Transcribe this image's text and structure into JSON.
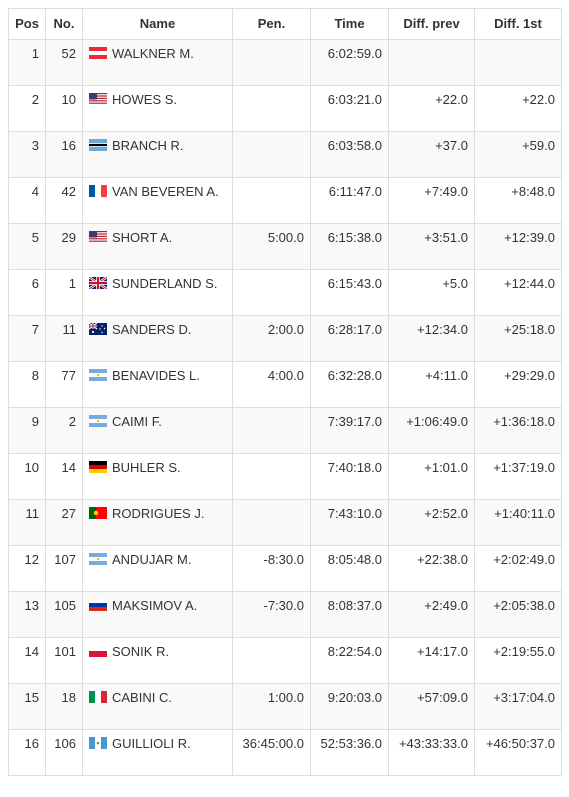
{
  "table": {
    "header": [
      "Pos",
      "No.",
      "Name",
      "Pen.",
      "Time",
      "Diff. prev",
      "Diff. 1st"
    ],
    "rows": [
      [
        1,
        52,
        "WALKNER M.",
        null,
        "6:02:59.0",
        null,
        null
      ],
      [
        2,
        10,
        "HOWES S.",
        null,
        "6:03:21.0",
        "+22.0",
        "+22.0"
      ],
      [
        3,
        16,
        "BRANCH R.",
        null,
        "6:03:58.0",
        "+37.0",
        "+59.0"
      ],
      [
        4,
        42,
        "VAN BEVEREN A.",
        null,
        "6:11:47.0",
        "+7:49.0",
        "+8:48.0"
      ],
      [
        5,
        29,
        "SHORT A.",
        "5:00.0",
        "6:15:38.0",
        "+3:51.0",
        "+12:39.0"
      ],
      [
        6,
        1,
        "SUNDERLAND S.",
        null,
        "6:15:43.0",
        "+5.0",
        "+12:44.0"
      ],
      [
        7,
        11,
        "SANDERS D.",
        "2:00.0",
        "6:28:17.0",
        "+12:34.0",
        "+25:18.0"
      ],
      [
        8,
        77,
        "BENAVIDES L.",
        "4:00.0",
        "6:32:28.0",
        "+4:11.0",
        "+29:29.0"
      ],
      [
        9,
        2,
        "CAIMI F.",
        null,
        "7:39:17.0",
        "+1:06:49.0",
        "+1:36:18.0"
      ],
      [
        10,
        14,
        "BUHLER S.",
        null,
        "7:40:18.0",
        "+1:01.0",
        "+1:37:19.0"
      ],
      [
        11,
        27,
        "RODRIGUES J.",
        null,
        "7:43:10.0",
        "+2:52.0",
        "+1:40:11.0"
      ],
      [
        12,
        107,
        "ANDUJAR M.",
        "-8:30.0",
        "8:05:48.0",
        "+22:38.0",
        "+2:02:49.0"
      ],
      [
        13,
        105,
        "MAKSIMOV A.",
        "-7:30.0",
        "8:08:37.0",
        "+2:49.0",
        "+2:05:38.0"
      ],
      [
        14,
        101,
        "SONIK R.",
        null,
        "8:22:54.0",
        "+14:17.0",
        "+2:19:55.0"
      ],
      [
        15,
        18,
        "CABINI C.",
        "1:00.0",
        "9:20:03.0",
        "+57:09.0",
        "+3:17:04.0"
      ],
      [
        16,
        106,
        "GUILLIOLI R.",
        "36:45:00.0",
        "52:53:36.0",
        "+43:33:33.0",
        "+46:50:37.0"
      ]
    ]
  }
}
